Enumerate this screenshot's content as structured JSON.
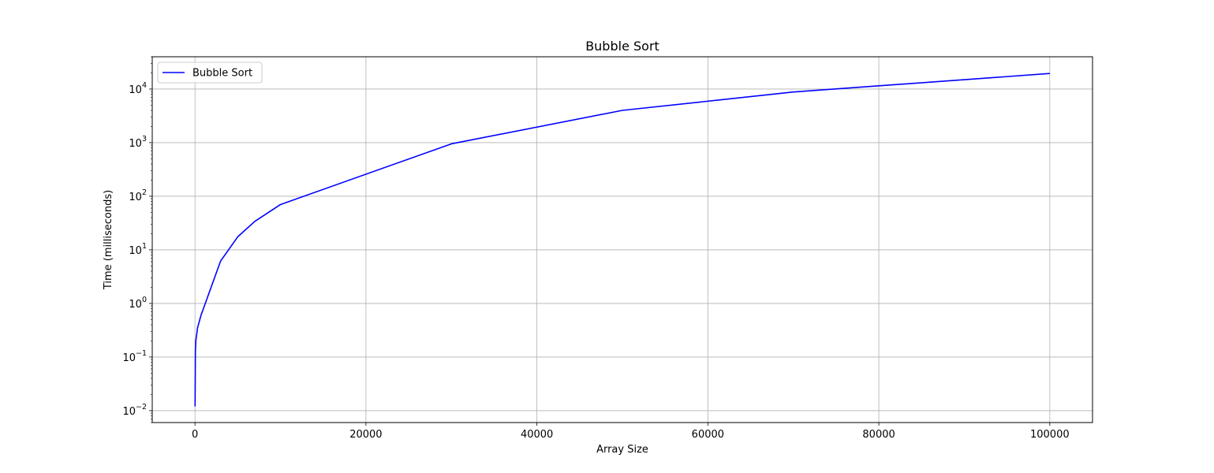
{
  "chart_data": {
    "type": "line",
    "title": "Bubble Sort",
    "xlabel": "Array Size",
    "ylabel": "Time (milliseconds)",
    "yscale": "log",
    "xlim": [
      -5000,
      105000
    ],
    "ylim": [
      0.006,
      40000
    ],
    "grid": true,
    "legend": "upper-left",
    "x_ticks": [
      {
        "value": 0,
        "label": "0"
      },
      {
        "value": 20000,
        "label": "20000"
      },
      {
        "value": 40000,
        "label": "40000"
      },
      {
        "value": 60000,
        "label": "60000"
      },
      {
        "value": 80000,
        "label": "80000"
      },
      {
        "value": 100000,
        "label": "100000"
      }
    ],
    "y_ticks": [
      {
        "value": 0.01,
        "base": "10",
        "exp": "−2"
      },
      {
        "value": 0.1,
        "base": "10",
        "exp": "−1"
      },
      {
        "value": 1,
        "base": "10",
        "exp": "0"
      },
      {
        "value": 10,
        "base": "10",
        "exp": "1"
      },
      {
        "value": 100,
        "base": "10",
        "exp": "2"
      },
      {
        "value": 1000,
        "base": "10",
        "exp": "3"
      },
      {
        "value": 10000,
        "base": "10",
        "exp": "4"
      }
    ],
    "series": [
      {
        "name": "Bubble Sort",
        "color": "#0000ff",
        "x": [
          10,
          50,
          100,
          300,
          700,
          3000,
          5000,
          7000,
          10000,
          30000,
          50000,
          70000,
          100000
        ],
        "y": [
          0.012,
          0.13,
          0.2,
          0.35,
          0.6,
          6.2,
          17.5,
          34,
          70,
          950,
          4000,
          8800,
          19500
        ]
      }
    ]
  }
}
